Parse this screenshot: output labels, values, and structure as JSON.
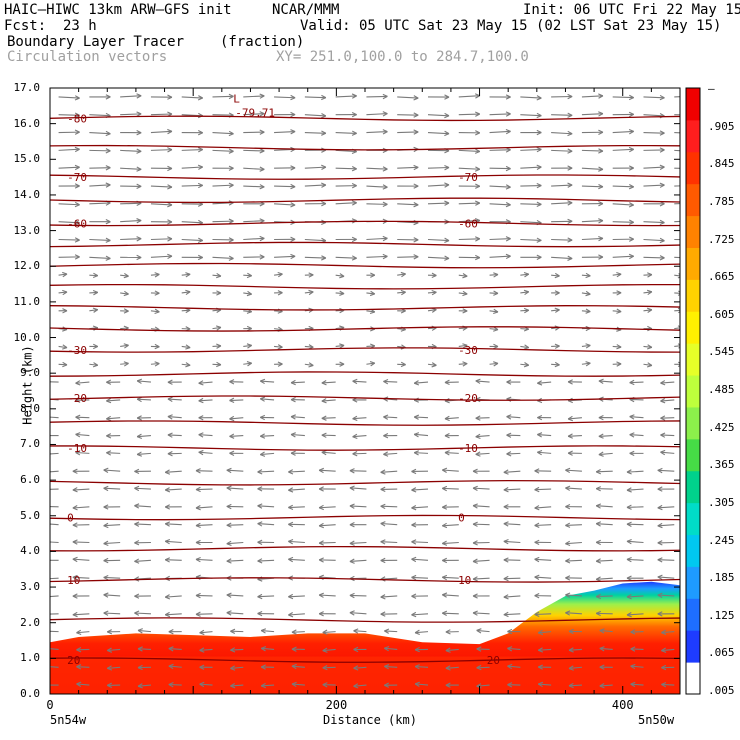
{
  "header": {
    "model": "HAIC—HIWC 13km ARW—GFS init",
    "org": "NCAR/MMM",
    "init": "Init: 06 UTC Fri 22 May 15",
    "fcst_label": "Fcst:",
    "fcst_value": "23 h",
    "valid": "Valid: 05 UTC Sat 23 May 15 (02 LST Sat 23 May 15)",
    "field": "Boundary Layer Tracer",
    "field_units": "(fraction)",
    "overlay": "Circulation vectors",
    "xy": "XY= 251.0,100.0 to 284.7,100.0"
  },
  "colors": {
    "contour": "#8b0000",
    "vector": "#7a7a7a",
    "axis": "#000000"
  },
  "chart_data": {
    "type": "heatmap",
    "xlabel": "Distance (km)",
    "ylabel": "Height (km)",
    "xlim": [
      0,
      440
    ],
    "ylim": [
      0,
      17
    ],
    "x_ticks": [
      "0",
      "200",
      "400"
    ],
    "y_ticks": [
      "0.0",
      "1.0",
      "2.0",
      "3.0",
      "4.0",
      "5.0",
      "6.0",
      "7.0",
      "8.0",
      "9.0",
      "10.0",
      "11.0",
      "12.0",
      "13.0",
      "14.0",
      "15.0",
      "16.0",
      "17.0"
    ],
    "x_start_label": "5n54w",
    "x_end_label": "5n50w",
    "colorbar": {
      "labels": [
        "—",
        ".905",
        ".845",
        ".785",
        ".725",
        ".665",
        ".605",
        ".545",
        ".485",
        ".425",
        ".365",
        ".305",
        ".245",
        ".185",
        ".125",
        ".065",
        ".005"
      ],
      "colors": [
        "#ffffff",
        "#1e3cff",
        "#1e6eff",
        "#1e9bff",
        "#00c8f0",
        "#00dcc8",
        "#00d28c",
        "#46dc46",
        "#8cf04b",
        "#beff3c",
        "#e6ff28",
        "#fff000",
        "#ffd200",
        "#ffaa00",
        "#ff8200",
        "#ff5a00",
        "#ff3200",
        "#ff1e1e",
        "#f00000"
      ]
    },
    "tracer_top_km": {
      "x": [
        0,
        20,
        60,
        100,
        140,
        180,
        220,
        260,
        300,
        320,
        340,
        360,
        380,
        400,
        420,
        440
      ],
      "y": [
        1.45,
        1.6,
        1.7,
        1.65,
        1.6,
        1.7,
        1.7,
        1.45,
        1.4,
        1.7,
        2.3,
        2.75,
        2.9,
        3.1,
        3.15,
        3.05
      ]
    },
    "temperature_contours": [
      {
        "label": "-80",
        "y_km": 16.15
      },
      {
        "label": "-70",
        "y_km": 14.5
      },
      {
        "label": "-60",
        "y_km": 13.2
      },
      {
        "label": "-30",
        "y_km": 9.65
      },
      {
        "label": "-20",
        "y_km": 8.3
      },
      {
        "label": "-10",
        "y_km": 6.9
      },
      {
        "label": "0",
        "y_km": 4.95
      },
      {
        "label": "10",
        "y_km": 3.2
      },
      {
        "label": "20",
        "y_km": 0.95
      }
    ],
    "minimum": {
      "label": "L",
      "value": "-79.71",
      "x_km": 128,
      "y_km": 16.6
    }
  }
}
